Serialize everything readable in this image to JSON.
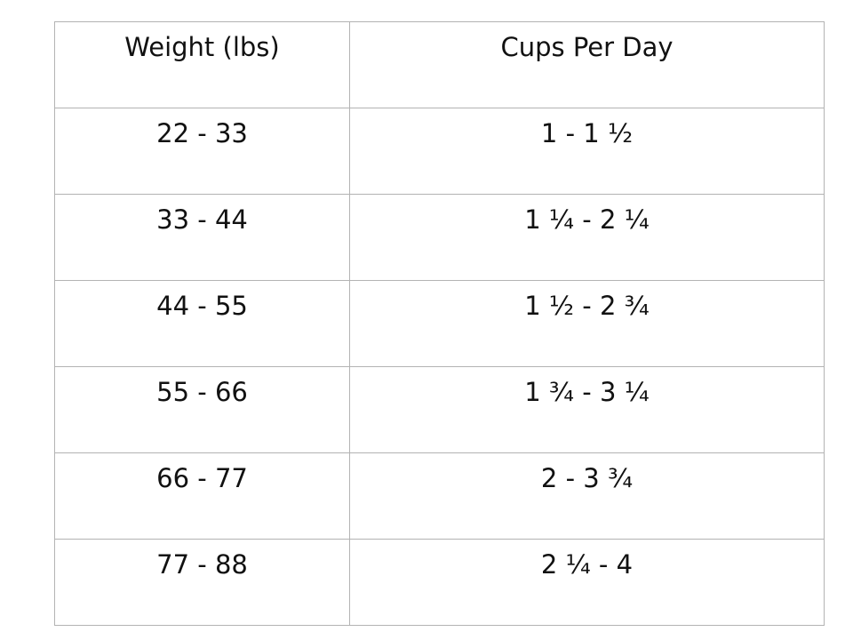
{
  "table": {
    "headers": [
      "Weight (lbs)",
      "Cups Per Day"
    ],
    "rows": [
      [
        "22 - 33",
        "1 - 1 ½"
      ],
      [
        "33 - 44",
        "1 ¼ - 2 ¼"
      ],
      [
        "44 - 55",
        "1 ½ - 2 ¾"
      ],
      [
        "55 - 66",
        "1 ¾ - 3 ¼"
      ],
      [
        "66 - 77",
        "2 - 3 ¾"
      ],
      [
        "77 - 88",
        "2 ¼ - 4"
      ]
    ]
  }
}
